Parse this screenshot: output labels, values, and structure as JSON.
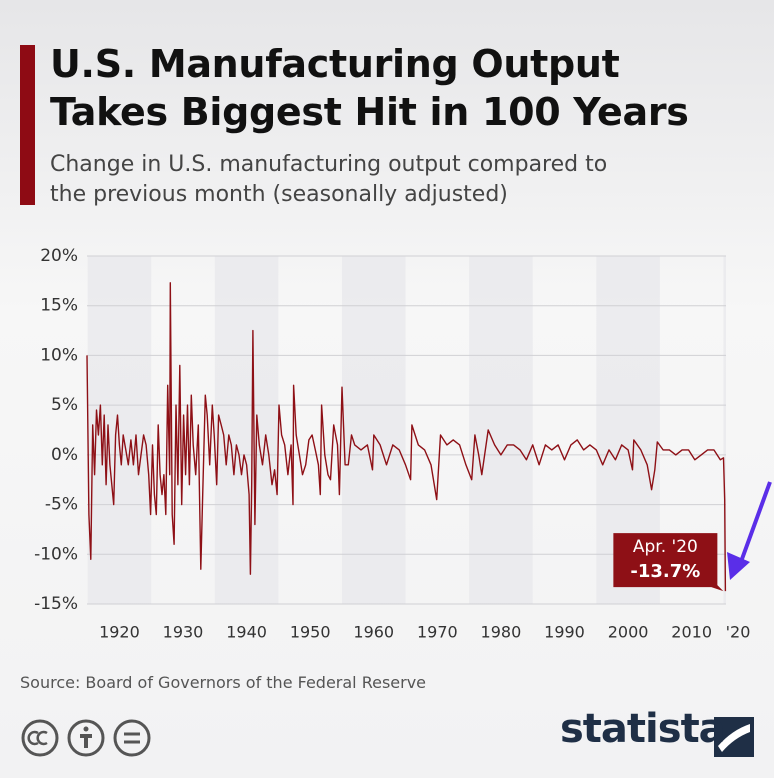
{
  "title": "U.S. Manufacturing Output Takes Biggest Hit in 100 Years",
  "subtitle": "Change in U.S. manufacturing output compared to the previous month (seasonally adjusted)",
  "source": "Source: Board of Governors of the Federal Reserve",
  "brand": "statista",
  "chart_data": {
    "type": "line",
    "color": "#8e1016",
    "grid": true,
    "annotation": "Apr. '20",
    "xlim": [
      1919.9,
      2020.4
    ],
    "ylim": [
      -15,
      20
    ],
    "xticks": [
      1920,
      1930,
      1940,
      1950,
      1960,
      1970,
      1980,
      1990,
      2000,
      2010,
      {
        "value": 2020,
        "label": "'20"
      }
    ],
    "yticks": [
      {
        "value": 20,
        "label": "20%"
      },
      {
        "value": 15,
        "label": "15%"
      },
      {
        "value": 10,
        "label": "10%"
      },
      {
        "value": 5,
        "label": "5%"
      },
      {
        "value": 0,
        "label": "0%"
      },
      {
        "value": -5,
        "label": "-5%"
      },
      {
        "value": -10,
        "label": "-10%"
      },
      {
        "value": -15,
        "label": "-15%"
      }
    ],
    "x": [
      1919.9,
      1920.2,
      1920.5,
      1920.8,
      1921.1,
      1921.4,
      1921.7,
      1922.0,
      1922.3,
      1922.6,
      1922.9,
      1923.2,
      1923.5,
      1923.8,
      1924.1,
      1924.4,
      1924.7,
      1925.0,
      1925.3,
      1925.6,
      1926.0,
      1926.4,
      1926.8,
      1927.2,
      1927.6,
      1928.0,
      1928.4,
      1928.8,
      1929.2,
      1929.6,
      1929.9,
      1930.2,
      1930.5,
      1930.8,
      1931.1,
      1931.4,
      1931.7,
      1932.0,
      1932.3,
      1932.6,
      1932.9,
      1933.0,
      1933.3,
      1933.6,
      1933.9,
      1934.2,
      1934.5,
      1934.8,
      1935.1,
      1935.4,
      1935.7,
      1936.0,
      1936.3,
      1936.6,
      1937.0,
      1937.4,
      1937.8,
      1938.1,
      1938.5,
      1938.8,
      1939.2,
      1939.6,
      1939.9,
      1940.3,
      1940.6,
      1941.0,
      1941.4,
      1941.8,
      1942.2,
      1942.6,
      1943.0,
      1943.4,
      1943.8,
      1944.2,
      1944.6,
      1945.0,
      1945.4,
      1945.6,
      1945.8,
      1946.0,
      1946.3,
      1946.6,
      1947.0,
      1947.5,
      1948.0,
      1948.5,
      1949.0,
      1949.4,
      1949.8,
      1950.1,
      1950.5,
      1951.0,
      1951.5,
      1952.0,
      1952.3,
      1952.4,
      1952.8,
      1953.3,
      1953.8,
      1954.3,
      1954.8,
      1955.3,
      1955.8,
      1956.3,
      1956.6,
      1956.8,
      1957.3,
      1957.8,
      1958.2,
      1958.7,
      1959.3,
      1959.6,
      1960.0,
      1960.5,
      1961.0,
      1961.5,
      1962.0,
      1963.0,
      1964.0,
      1964.8,
      1965.0,
      1966.0,
      1967.0,
      1968.0,
      1969.0,
      1970.0,
      1970.8,
      1971.0,
      1972.0,
      1973.0,
      1974.0,
      1974.9,
      1975.5,
      1976.5,
      1977.5,
      1978.5,
      1979.5,
      1980.4,
      1980.9,
      1981.5,
      1982.0,
      1983.0,
      1984.0,
      1985.0,
      1986.0,
      1987.0,
      1988.0,
      1989.0,
      1990.0,
      1991.0,
      1992.0,
      1993.0,
      1994.0,
      1995.0,
      1996.0,
      1997.0,
      1998.0,
      1999.0,
      2000.0,
      2001.0,
      2002.0,
      2003.0,
      2004.0,
      2005.0,
      2005.7,
      2005.9,
      2007.0,
      2008.0,
      2008.7,
      2009.2,
      2009.6,
      2010.5,
      2011.5,
      2012.5,
      2013.5,
      2014.5,
      2015.5,
      2016.5,
      2017.5,
      2018.5,
      2019.5,
      2020.0,
      2020.2,
      2020.3
    ],
    "values": [
      10,
      -6,
      -10.5,
      3,
      -2,
      4.5,
      2,
      5,
      -1,
      4,
      -3,
      3,
      -1,
      -3,
      -5,
      2,
      4,
      1,
      -1,
      2,
      0.5,
      -1,
      1.5,
      -1,
      2,
      -2,
      0,
      2,
      1,
      -2,
      -6,
      1,
      -4,
      -6,
      3,
      -2,
      -4,
      -2,
      -6,
      7,
      -2,
      17.3,
      -6,
      -9,
      5,
      -3,
      9,
      -5,
      4,
      -2,
      5,
      -3,
      6,
      1,
      -2,
      3,
      -11.5,
      -4,
      6,
      4,
      -1,
      5,
      2,
      -3,
      4,
      3,
      2,
      -1,
      2,
      1,
      -2,
      1,
      0,
      -2,
      0,
      -1,
      -4,
      -12,
      -3,
      12.5,
      -7,
      4,
      1,
      -1,
      2,
      0,
      -3,
      -1.5,
      -4,
      5,
      2,
      1,
      -2,
      1,
      -5,
      7,
      2,
      0,
      -2,
      -1,
      1.5,
      2,
      0.5,
      -1,
      -4,
      5,
      0,
      -2,
      -2.5,
      3,
      1,
      -4,
      6.8,
      -1,
      -1,
      2,
      1,
      0.5,
      1,
      -1.5,
      2,
      1,
      -1,
      1,
      0.5,
      -1,
      -2.5,
      3,
      1,
      0.5,
      -1,
      -4.5,
      2,
      1,
      1.5,
      1,
      -1,
      -2.5,
      2,
      0,
      -2,
      2.5,
      1,
      0,
      1,
      1,
      0.5,
      -0.5,
      1,
      -1,
      1,
      0.5,
      1,
      -0.5,
      1,
      1.5,
      0.5,
      1,
      0.5,
      -1,
      0.5,
      -0.5,
      1,
      0.5,
      -1.5,
      1.5,
      0.5,
      -1,
      -3.5,
      -1.5,
      1.3,
      0.5,
      0.5,
      0,
      0.5,
      0.5,
      -0.5,
      0,
      0.5,
      0.5,
      -0.5,
      -0.3,
      -4.5,
      -13.7
    ],
    "value_labels": [
      null,
      null,
      null,
      null,
      null,
      null,
      null,
      null,
      null,
      null,
      null,
      null,
      null,
      null,
      null,
      null,
      null,
      null,
      null,
      null,
      null,
      null,
      null,
      null,
      null,
      null,
      null,
      null,
      null,
      null,
      null,
      null,
      null,
      null,
      null,
      null,
      null,
      null,
      null,
      null,
      null,
      null,
      null,
      null,
      null,
      null,
      null,
      null,
      null,
      null,
      null,
      null,
      null,
      null,
      null,
      null,
      null,
      null,
      null,
      null,
      null,
      null,
      null,
      null,
      null,
      null,
      null,
      null,
      null,
      null,
      null,
      null,
      null,
      null,
      null,
      null,
      null,
      null,
      null,
      null,
      null,
      null,
      null,
      null,
      null,
      null,
      null,
      null,
      null,
      null,
      null,
      null,
      null,
      null,
      null,
      null,
      null,
      null,
      null,
      null,
      null,
      null,
      null,
      null,
      null,
      null,
      null,
      null,
      null,
      null,
      null,
      null,
      null,
      null,
      null,
      null,
      null,
      null,
      null,
      null,
      null,
      null,
      null,
      null,
      null,
      null,
      null,
      null,
      null,
      null,
      null,
      null,
      null,
      null,
      null,
      null,
      null,
      null,
      null,
      null,
      null,
      null,
      null,
      null,
      null,
      null,
      null,
      null,
      null,
      null,
      null,
      null,
      null,
      null,
      null,
      null,
      null,
      null,
      null,
      null,
      null,
      null,
      null,
      null,
      null,
      null,
      null,
      null,
      null,
      null,
      null,
      null,
      null,
      null,
      null,
      null,
      null,
      null,
      null,
      null,
      null,
      null,
      null,
      "-13.7%"
    ]
  }
}
